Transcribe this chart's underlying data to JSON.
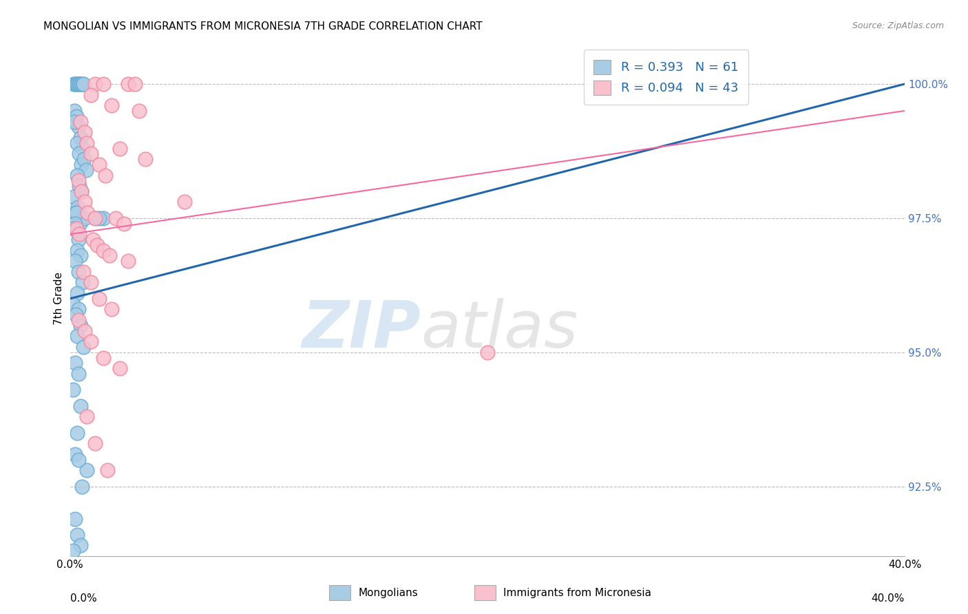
{
  "title": "MONGOLIAN VS IMMIGRANTS FROM MICRONESIA 7TH GRADE CORRELATION CHART",
  "source": "Source: ZipAtlas.com",
  "ylabel": "7th Grade",
  "yticks": [
    92.5,
    95.0,
    97.5,
    100.0
  ],
  "ytick_labels": [
    "92.5%",
    "95.0%",
    "97.5%",
    "100.0%"
  ],
  "xmin": 0.0,
  "xmax": 40.0,
  "ymin": 91.2,
  "ymax": 100.8,
  "legend_r1": "R = 0.393",
  "legend_n1": "N = 61",
  "legend_r2": "R = 0.094",
  "legend_n2": "N = 43",
  "blue_color": "#a8cce4",
  "blue_edge_color": "#6baed6",
  "pink_color": "#f9c0ce",
  "pink_edge_color": "#f4899e",
  "blue_line_color": "#2166ac",
  "pink_line_color": "#f768a1",
  "legend_text_color": "#2166ac",
  "ytick_color": "#4472c4",
  "watermark_color": "#cce0f0",
  "blue_line_x": [
    0.0,
    40.0
  ],
  "blue_line_y": [
    96.0,
    100.0
  ],
  "pink_line_x": [
    0.0,
    40.0
  ],
  "pink_line_y": [
    97.2,
    99.5
  ],
  "blue_scatter_x": [
    0.18,
    0.25,
    0.3,
    0.35,
    0.4,
    0.45,
    0.5,
    0.55,
    0.6,
    0.65,
    0.2,
    0.3,
    0.4,
    0.5,
    0.6,
    0.22,
    0.33,
    0.44,
    0.55,
    0.66,
    0.77,
    0.35,
    0.45,
    0.55,
    0.18,
    0.38,
    1.2,
    1.6,
    0.28,
    0.48,
    0.7,
    0.32,
    0.25,
    1.4,
    0.15,
    0.42,
    0.33,
    0.52,
    0.25,
    0.42,
    0.62,
    0.35,
    0.16,
    0.42,
    0.28,
    0.5,
    0.33,
    0.65,
    0.25,
    0.42,
    0.16,
    0.5,
    0.33,
    0.25,
    0.82,
    0.42,
    0.57,
    0.25,
    0.33,
    0.5,
    0.16
  ],
  "blue_scatter_y": [
    100.0,
    100.0,
    100.0,
    100.0,
    100.0,
    100.0,
    100.0,
    100.0,
    100.0,
    100.0,
    99.5,
    99.4,
    99.2,
    99.0,
    98.8,
    99.3,
    98.9,
    98.7,
    98.5,
    98.6,
    98.4,
    98.3,
    98.1,
    98.0,
    97.9,
    97.7,
    97.5,
    97.5,
    97.6,
    97.4,
    97.5,
    97.6,
    97.4,
    97.5,
    97.3,
    97.1,
    96.9,
    96.8,
    96.7,
    96.5,
    96.3,
    96.1,
    95.9,
    95.8,
    95.7,
    95.5,
    95.3,
    95.1,
    94.8,
    94.6,
    94.3,
    94.0,
    93.5,
    93.1,
    92.8,
    93.0,
    92.5,
    91.9,
    91.6,
    91.4,
    91.3
  ],
  "pink_scatter_x": [
    1.2,
    1.6,
    2.8,
    3.1,
    1.0,
    2.0,
    3.3,
    5.5,
    0.5,
    0.7,
    0.8,
    1.0,
    1.4,
    1.7,
    2.4,
    3.6,
    0.4,
    0.55,
    0.7,
    0.85,
    1.2,
    2.2,
    2.6,
    0.3,
    0.45,
    1.1,
    1.3,
    1.6,
    1.9,
    2.8,
    20.0,
    0.65,
    1.0,
    1.4,
    2.0,
    0.4,
    0.7,
    1.0,
    1.6,
    2.4,
    0.8,
    1.2,
    1.8
  ],
  "pink_scatter_y": [
    100.0,
    100.0,
    100.0,
    100.0,
    99.8,
    99.6,
    99.5,
    97.8,
    99.3,
    99.1,
    98.9,
    98.7,
    98.5,
    98.3,
    98.8,
    98.6,
    98.2,
    98.0,
    97.8,
    97.6,
    97.5,
    97.5,
    97.4,
    97.3,
    97.2,
    97.1,
    97.0,
    96.9,
    96.8,
    96.7,
    95.0,
    96.5,
    96.3,
    96.0,
    95.8,
    95.6,
    95.4,
    95.2,
    94.9,
    94.7,
    93.8,
    93.3,
    92.8
  ]
}
